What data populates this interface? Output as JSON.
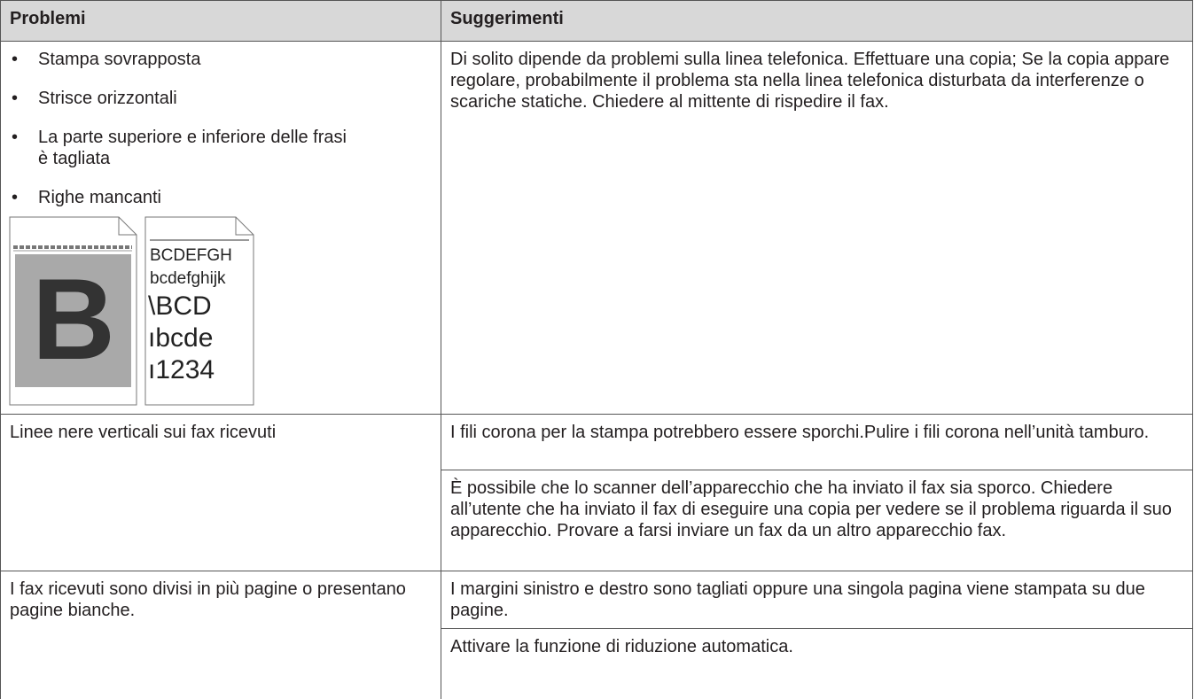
{
  "table": {
    "header": [
      "Problemi",
      "Suggerimenti"
    ],
    "rows": [
      {
        "problem_list": [
          "Stampa sovrapposta",
          "Strisce orizzontali",
          "La parte superiore e inferiore delle frasi è tagliata",
          "Righe mancanti"
        ],
        "suggestions": [
          "Di solito dipende da problemi sulla linea telefonica. Effettuare una copia; Se la copia appare regolare, probabilmente il problema sta nella linea telefonica disturbata da interferenze o scariche statiche. Chiedere al mittente di rispedire il fax."
        ]
      },
      {
        "problem": "Linee nere verticali sui fax ricevuti",
        "suggestions": [
          "I fili corona per la stampa potrebbero essere sporchi.Pulire i fili corona nell’unità tamburo.",
          "È possibile che lo scanner dell’apparecchio che ha inviato il fax sia sporco. Chiedere all’utente che ha inviato il fax di eseguire una copia per vedere se il problema riguarda il suo apparecchio. Provare a farsi inviare un fax da un altro apparecchio fax."
        ]
      },
      {
        "problem": "I fax ricevuti sono divisi in più pagine o presentano pagine bianche.",
        "suggestions": [
          "I margini sinistro e destro sono tagliati oppure una singola pagina viene stampata su due pagine.",
          "Attivare la funzione di riduzione automatica."
        ]
      }
    ]
  },
  "images": {
    "left_letter": "B",
    "right_lines": [
      "BCDEFGH",
      "bcdefghijk",
      "\\BCD",
      "ıbcde",
      "ı1234"
    ]
  }
}
